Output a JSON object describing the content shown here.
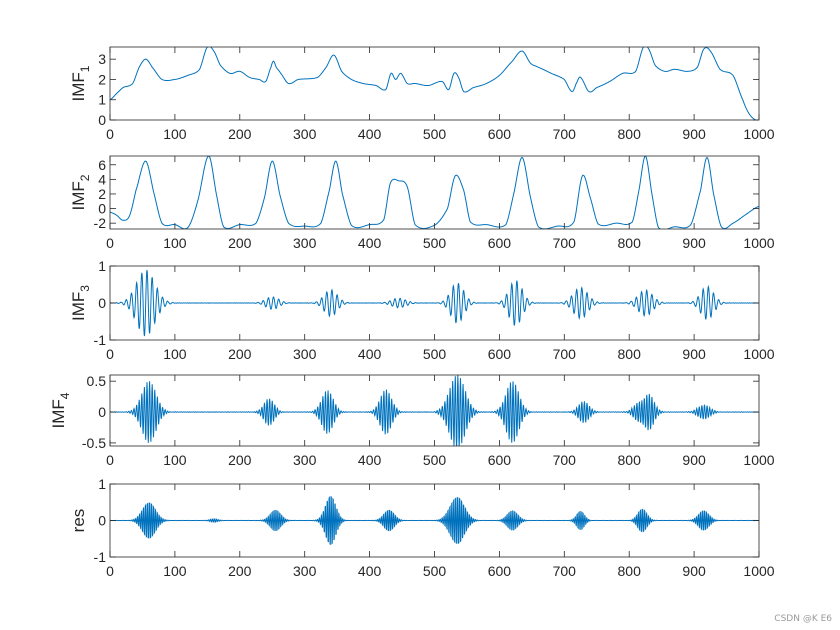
{
  "figure": {
    "watermark": "CSDN @K E6",
    "line_color": "#0072BD",
    "axis_color": "#262626"
  },
  "chart_data": [
    {
      "type": "line",
      "ylabel": "IMF",
      "ylabel_sub": "1",
      "xlim": [
        0,
        1000
      ],
      "ylim": [
        0,
        3.6
      ],
      "xticks": [
        0,
        100,
        200,
        300,
        400,
        500,
        600,
        700,
        800,
        900,
        1000
      ],
      "yticks": [
        0,
        1,
        2,
        3
      ],
      "signal": {
        "kind": "smooth",
        "points": [
          [
            0,
            1.0
          ],
          [
            10,
            1.3
          ],
          [
            20,
            1.6
          ],
          [
            35,
            1.8
          ],
          [
            45,
            2.6
          ],
          [
            55,
            3.0
          ],
          [
            65,
            2.6
          ],
          [
            80,
            2.0
          ],
          [
            100,
            2.0
          ],
          [
            120,
            2.2
          ],
          [
            138,
            2.5
          ],
          [
            150,
            3.6
          ],
          [
            160,
            3.4
          ],
          [
            170,
            2.7
          ],
          [
            185,
            2.3
          ],
          [
            200,
            2.4
          ],
          [
            215,
            2.1
          ],
          [
            230,
            2.0
          ],
          [
            240,
            1.9
          ],
          [
            248,
            2.6
          ],
          [
            252,
            2.9
          ],
          [
            256,
            2.6
          ],
          [
            263,
            2.3
          ],
          [
            275,
            1.8
          ],
          [
            290,
            2.0
          ],
          [
            320,
            2.1
          ],
          [
            333,
            2.6
          ],
          [
            345,
            3.2
          ],
          [
            357,
            2.4
          ],
          [
            372,
            2.0
          ],
          [
            390,
            1.8
          ],
          [
            410,
            1.7
          ],
          [
            425,
            1.5
          ],
          [
            433,
            2.3
          ],
          [
            440,
            2.0
          ],
          [
            448,
            2.3
          ],
          [
            458,
            1.8
          ],
          [
            470,
            1.8
          ],
          [
            490,
            1.7
          ],
          [
            512,
            1.9
          ],
          [
            522,
            1.5
          ],
          [
            530,
            2.3
          ],
          [
            537,
            2.1
          ],
          [
            545,
            1.4
          ],
          [
            560,
            1.6
          ],
          [
            580,
            1.8
          ],
          [
            600,
            2.2
          ],
          [
            620,
            2.9
          ],
          [
            635,
            3.4
          ],
          [
            648,
            2.8
          ],
          [
            660,
            2.6
          ],
          [
            680,
            2.3
          ],
          [
            700,
            2.0
          ],
          [
            712,
            1.4
          ],
          [
            720,
            1.9
          ],
          [
            725,
            2.1
          ],
          [
            738,
            1.4
          ],
          [
            750,
            1.6
          ],
          [
            770,
            1.9
          ],
          [
            790,
            2.3
          ],
          [
            810,
            2.4
          ],
          [
            822,
            3.6
          ],
          [
            830,
            3.5
          ],
          [
            840,
            2.7
          ],
          [
            855,
            2.4
          ],
          [
            870,
            2.5
          ],
          [
            890,
            2.4
          ],
          [
            905,
            2.6
          ],
          [
            915,
            3.5
          ],
          [
            925,
            3.4
          ],
          [
            940,
            2.5
          ],
          [
            960,
            2.2
          ],
          [
            975,
            1.0
          ],
          [
            985,
            0.3
          ],
          [
            995,
            0.0
          ],
          [
            1000,
            0.0
          ]
        ]
      }
    },
    {
      "type": "line",
      "ylabel": "IMF",
      "ylabel_sub": "2",
      "xlim": [
        0,
        1000
      ],
      "ylim": [
        -2.8,
        7.2
      ],
      "xticks": [
        0,
        100,
        200,
        300,
        400,
        500,
        600,
        700,
        800,
        900,
        1000
      ],
      "yticks": [
        -2,
        0,
        2,
        4,
        6
      ],
      "signal": {
        "kind": "smooth",
        "points": [
          [
            0,
            -0.5
          ],
          [
            10,
            -0.9
          ],
          [
            20,
            -1.6
          ],
          [
            30,
            -1.0
          ],
          [
            40,
            2.5
          ],
          [
            55,
            6.5
          ],
          [
            68,
            2.0
          ],
          [
            80,
            -2.0
          ],
          [
            100,
            -2.2
          ],
          [
            120,
            -2.6
          ],
          [
            135,
            1.0
          ],
          [
            152,
            7.2
          ],
          [
            165,
            1.5
          ],
          [
            175,
            -2.5
          ],
          [
            200,
            -2.2
          ],
          [
            225,
            -2.0
          ],
          [
            238,
            1.5
          ],
          [
            250,
            6.5
          ],
          [
            262,
            1.8
          ],
          [
            275,
            -2.0
          ],
          [
            300,
            -2.4
          ],
          [
            325,
            -2.0
          ],
          [
            338,
            2.5
          ],
          [
            348,
            6.5
          ],
          [
            358,
            2.0
          ],
          [
            372,
            -2.3
          ],
          [
            400,
            -2.2
          ],
          [
            422,
            -1.5
          ],
          [
            432,
            3.5
          ],
          [
            445,
            3.8
          ],
          [
            458,
            3.0
          ],
          [
            470,
            -2.2
          ],
          [
            500,
            -2.3
          ],
          [
            520,
            0.0
          ],
          [
            532,
            4.5
          ],
          [
            545,
            2.5
          ],
          [
            555,
            -1.8
          ],
          [
            580,
            -2.2
          ],
          [
            610,
            -2.2
          ],
          [
            622,
            2.0
          ],
          [
            635,
            7.0
          ],
          [
            648,
            1.5
          ],
          [
            660,
            -2.5
          ],
          [
            690,
            -2.4
          ],
          [
            715,
            -1.8
          ],
          [
            728,
            4.5
          ],
          [
            740,
            1.5
          ],
          [
            752,
            -2.1
          ],
          [
            780,
            -2.0
          ],
          [
            805,
            -1.8
          ],
          [
            815,
            2.5
          ],
          [
            825,
            7.2
          ],
          [
            835,
            2.0
          ],
          [
            845,
            -2.6
          ],
          [
            870,
            -2.5
          ],
          [
            895,
            -2.2
          ],
          [
            910,
            2.5
          ],
          [
            920,
            7.0
          ],
          [
            930,
            2.0
          ],
          [
            942,
            -2.5
          ],
          [
            960,
            -2.0
          ],
          [
            980,
            -0.8
          ],
          [
            1000,
            0.3
          ]
        ]
      }
    },
    {
      "type": "line",
      "ylabel": "IMF",
      "ylabel_sub": "3",
      "xlim": [
        0,
        1000
      ],
      "ylim": [
        -1,
        1
      ],
      "xticks": [
        0,
        100,
        200,
        300,
        400,
        500,
        600,
        700,
        800,
        900,
        1000
      ],
      "yticks": [
        -1,
        0,
        1
      ],
      "signal": {
        "kind": "bursts",
        "period": 8,
        "noise": 0.005,
        "bursts": [
          [
            55,
            14,
            0.9
          ],
          [
            250,
            10,
            0.17
          ],
          [
            340,
            10,
            0.36
          ],
          [
            445,
            11,
            0.13
          ],
          [
            535,
            10,
            0.55
          ],
          [
            625,
            10,
            0.62
          ],
          [
            725,
            11,
            0.42
          ],
          [
            825,
            11,
            0.35
          ],
          [
            920,
            10,
            0.45
          ]
        ]
      }
    },
    {
      "type": "line",
      "ylabel": "IMF",
      "ylabel_sub": "4",
      "xlim": [
        0,
        1000
      ],
      "ylim": [
        -0.55,
        0.6
      ],
      "xticks": [
        0,
        100,
        200,
        300,
        400,
        500,
        600,
        700,
        800,
        900,
        1000
      ],
      "yticks": [
        -0.5,
        0,
        0.5
      ],
      "signal": {
        "kind": "bursts",
        "period": 4,
        "noise": 0.004,
        "bursts": [
          [
            60,
            11,
            0.5
          ],
          [
            245,
            8,
            0.22
          ],
          [
            335,
            9,
            0.35
          ],
          [
            425,
            9,
            0.36
          ],
          [
            535,
            12,
            0.6
          ],
          [
            620,
            10,
            0.5
          ],
          [
            730,
            8,
            0.18
          ],
          [
            815,
            8,
            0.16
          ],
          [
            830,
            8,
            0.3
          ],
          [
            915,
            9,
            0.12
          ]
        ]
      }
    },
    {
      "type": "line",
      "ylabel": "res",
      "ylabel_sub": "",
      "xlim": [
        0,
        1000
      ],
      "ylim": [
        -1,
        1
      ],
      "xticks": [
        0,
        100,
        200,
        300,
        400,
        500,
        600,
        700,
        800,
        900,
        1000
      ],
      "yticks": [
        -1,
        0,
        1
      ],
      "signal": {
        "kind": "bursts",
        "period": 3,
        "noise": 0.004,
        "bursts": [
          [
            60,
            10,
            0.55
          ],
          [
            160,
            6,
            0.05
          ],
          [
            255,
            8,
            0.32
          ],
          [
            340,
            8,
            0.75
          ],
          [
            430,
            8,
            0.32
          ],
          [
            535,
            11,
            0.72
          ],
          [
            620,
            8,
            0.3
          ],
          [
            725,
            6,
            0.28
          ],
          [
            820,
            7,
            0.35
          ],
          [
            915,
            8,
            0.3
          ]
        ]
      }
    }
  ]
}
